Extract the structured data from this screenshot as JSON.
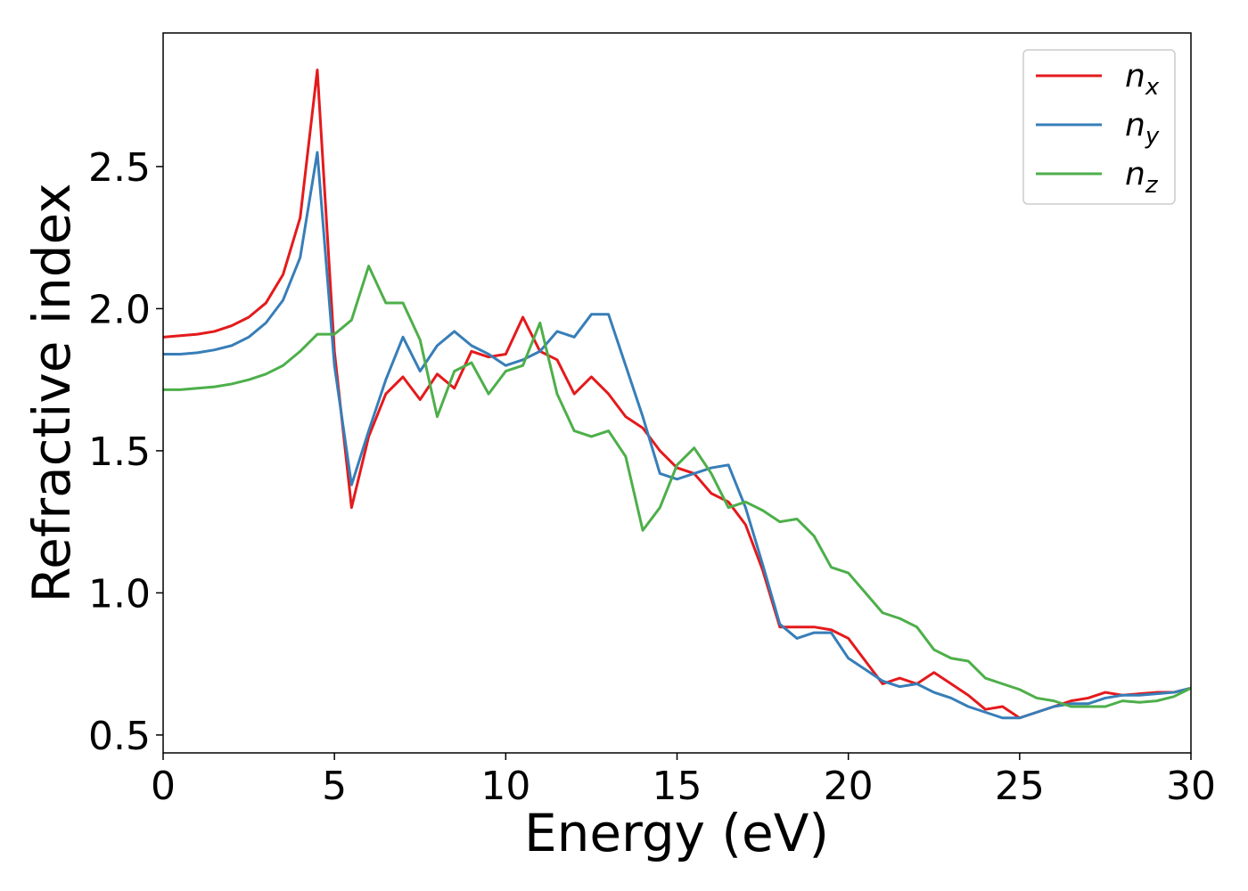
{
  "chart_data": {
    "type": "line",
    "xlabel": "Energy (eV)",
    "ylabel": "Refractive index",
    "x": [
      0,
      0.5,
      1,
      1.5,
      2,
      2.5,
      3,
      3.5,
      4,
      4.5,
      5,
      5.5,
      6,
      6.5,
      7,
      7.5,
      8,
      8.5,
      9,
      9.5,
      10,
      10.5,
      11,
      11.5,
      12,
      12.5,
      13,
      13.5,
      14,
      14.5,
      15,
      15.5,
      16,
      16.5,
      17,
      17.5,
      18,
      18.5,
      19,
      19.5,
      20,
      20.5,
      21,
      21.5,
      22,
      22.5,
      23,
      23.5,
      24,
      24.5,
      25,
      25.5,
      26,
      26.5,
      27,
      27.5,
      28,
      28.5,
      29,
      29.5,
      30
    ],
    "series": [
      {
        "name": "nx",
        "color": "#e41a1c",
        "values": [
          1.9,
          1.905,
          1.91,
          1.92,
          1.94,
          1.97,
          2.02,
          2.12,
          2.32,
          2.84,
          1.85,
          1.3,
          1.55,
          1.7,
          1.76,
          1.68,
          1.77,
          1.72,
          1.85,
          1.83,
          1.84,
          1.97,
          1.85,
          1.82,
          1.7,
          1.76,
          1.7,
          1.62,
          1.58,
          1.5,
          1.44,
          1.42,
          1.35,
          1.32,
          1.24,
          1.08,
          0.88,
          0.88,
          0.88,
          0.87,
          0.84,
          0.76,
          0.68,
          0.7,
          0.68,
          0.72,
          0.68,
          0.64,
          0.59,
          0.6,
          0.56,
          0.58,
          0.6,
          0.62,
          0.63,
          0.65,
          0.64,
          0.645,
          0.65,
          0.65,
          0.665
        ]
      },
      {
        "name": "ny",
        "color": "#377eb8",
        "values": [
          1.84,
          1.84,
          1.845,
          1.855,
          1.87,
          1.9,
          1.95,
          2.03,
          2.18,
          2.55,
          1.8,
          1.38,
          1.57,
          1.75,
          1.9,
          1.78,
          1.87,
          1.92,
          1.87,
          1.84,
          1.8,
          1.82,
          1.85,
          1.92,
          1.9,
          1.98,
          1.98,
          1.8,
          1.62,
          1.42,
          1.4,
          1.42,
          1.44,
          1.45,
          1.3,
          1.1,
          0.89,
          0.84,
          0.86,
          0.86,
          0.77,
          0.73,
          0.69,
          0.67,
          0.68,
          0.65,
          0.63,
          0.6,
          0.58,
          0.56,
          0.56,
          0.58,
          0.6,
          0.61,
          0.61,
          0.63,
          0.64,
          0.64,
          0.645,
          0.65,
          0.665
        ]
      },
      {
        "name": "nz",
        "color": "#4daf4a",
        "values": [
          1.715,
          1.715,
          1.72,
          1.725,
          1.735,
          1.75,
          1.77,
          1.8,
          1.85,
          1.91,
          1.91,
          1.96,
          2.15,
          2.02,
          2.02,
          1.89,
          1.62,
          1.78,
          1.81,
          1.7,
          1.78,
          1.8,
          1.95,
          1.7,
          1.57,
          1.55,
          1.57,
          1.48,
          1.22,
          1.3,
          1.45,
          1.51,
          1.42,
          1.3,
          1.32,
          1.29,
          1.25,
          1.26,
          1.2,
          1.09,
          1.07,
          1.0,
          0.93,
          0.91,
          0.88,
          0.8,
          0.77,
          0.76,
          0.7,
          0.68,
          0.66,
          0.63,
          0.62,
          0.6,
          0.6,
          0.6,
          0.62,
          0.615,
          0.62,
          0.635,
          0.665
        ]
      }
    ],
    "xlim": [
      0,
      30
    ],
    "xticks": [
      0,
      5,
      10,
      15,
      20,
      25,
      30
    ],
    "ylim": [
      0.437,
      2.97
    ],
    "yticks": [
      0.5,
      {
        "value": 1.0,
        "label": "1.0"
      },
      1.5,
      {
        "value": 2.0,
        "label": "2.0"
      },
      2.5
    ],
    "legend": "upper right",
    "grid": false
  }
}
